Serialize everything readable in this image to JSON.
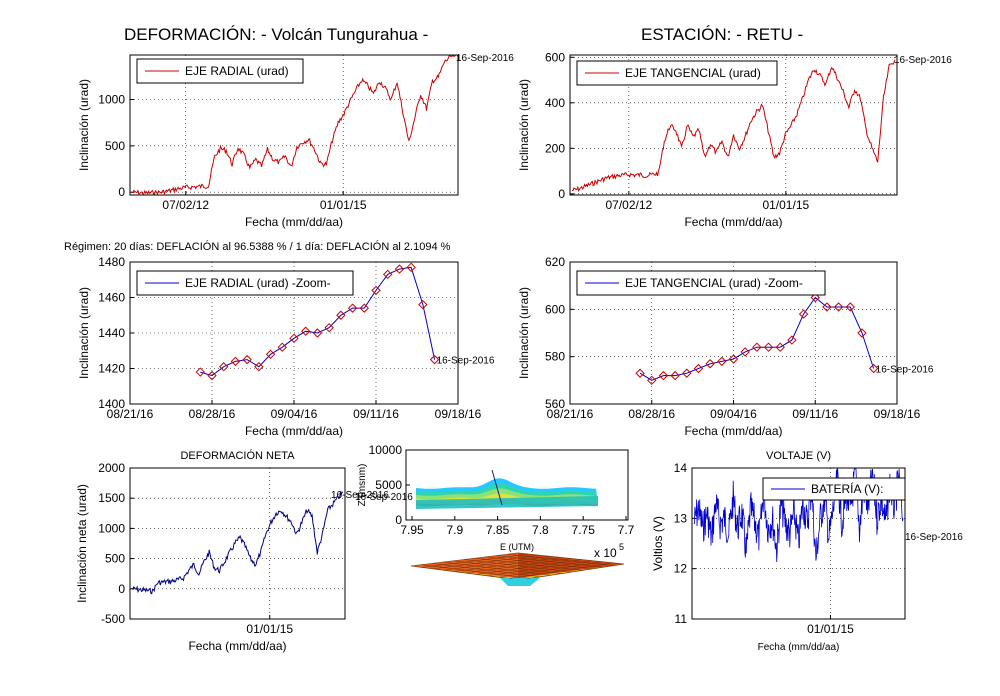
{
  "header": {
    "title_left": "DEFORMACIÓN: - Volcán Tungurahua -",
    "title_right": "ESTACIÓN: - RETU -",
    "regimen": "Régimen: 20 días: DEFLACIÓN al 96.5388 % / 1 día: DEFLACIÓN al 2.1094 %"
  },
  "colors": {
    "red": "#cc0000",
    "blue": "#0000cc",
    "navy": "#000080",
    "marker": "#cc0000"
  },
  "chart_data": [
    {
      "id": "radial",
      "type": "line",
      "title": "",
      "xlabel": "Fecha (mm/dd/aa)",
      "ylabel": "Inclinación (urad)",
      "ylim": [
        -30,
        1480
      ],
      "yticks": [
        0,
        500,
        1000
      ],
      "xticks": [
        "07/02/12",
        "01/01/15"
      ],
      "legend": "EJE RADIAL (urad)",
      "end_label": "16-Sep-2016",
      "series": [
        {
          "values": [
            0,
            -5,
            -10,
            -8,
            -5,
            0,
            10,
            25,
            40,
            50,
            55,
            60,
            65,
            70,
            380,
            470,
            450,
            300,
            480,
            400,
            260,
            350,
            280,
            460,
            350,
            320,
            390,
            270,
            490,
            540,
            570,
            460,
            310,
            300,
            560,
            750,
            850,
            980,
            1100,
            1210,
            1150,
            1060,
            1200,
            1120,
            1000,
            1190,
            860,
            540,
            800,
            1060,
            900,
            1200,
            1240,
            1400,
            1460,
            1480
          ]
        }
      ]
    },
    {
      "id": "tangencial",
      "type": "line",
      "title": "",
      "xlabel": "Fecha (mm/dd/aa)",
      "ylabel": "Inclinación (urad)",
      "ylim": [
        -5,
        610
      ],
      "yticks": [
        0,
        200,
        400,
        600
      ],
      "xticks": [
        "07/02/12",
        "01/01/15"
      ],
      "legend": "EJE TANGENCIAL (urad)",
      "end_label": "16-Sep-2016",
      "series": [
        {
          "values": [
            15,
            20,
            30,
            40,
            50,
            60,
            70,
            75,
            80,
            82,
            85,
            82,
            84,
            80,
            85,
            90,
            230,
            300,
            280,
            200,
            300,
            250,
            280,
            160,
            220,
            180,
            230,
            160,
            260,
            200,
            250,
            320,
            360,
            390,
            280,
            160,
            180,
            260,
            300,
            350,
            420,
            500,
            550,
            520,
            480,
            560,
            510,
            450,
            380,
            460,
            420,
            280,
            200,
            140,
            420,
            560,
            590
          ]
        }
      ]
    },
    {
      "id": "radial-zoom",
      "type": "line",
      "title": "",
      "xlabel": "Fecha (mm/dd/aa)",
      "ylabel": "Inclinación (urad)",
      "ylim": [
        1400,
        1480
      ],
      "yticks": [
        1400,
        1420,
        1440,
        1460,
        1480
      ],
      "xlim": [
        0,
        28
      ],
      "xticks": [
        {
          "x": 0,
          "label": "08/21/16"
        },
        {
          "x": 7,
          "label": "08/28/16"
        },
        {
          "x": 14,
          "label": "09/04/16"
        },
        {
          "x": 21,
          "label": "09/11/16"
        },
        {
          "x": 28,
          "label": "09/18/16"
        }
      ],
      "legend": "EJE RADIAL (urad) -Zoom-",
      "end_label": "16-Sep-2016",
      "x": [
        6,
        7,
        8,
        9,
        10,
        11,
        12,
        13,
        14,
        15,
        16,
        17,
        18,
        19,
        20,
        21,
        22,
        23,
        24,
        25,
        26
      ],
      "series": [
        {
          "values": [
            1418,
            1416,
            1421,
            1424,
            1425,
            1421,
            1428,
            1432,
            1437,
            1441,
            1440,
            1443,
            1450,
            1454,
            1454,
            1464,
            1473,
            1476,
            1477,
            1456,
            1425
          ]
        }
      ]
    },
    {
      "id": "tangencial-zoom",
      "type": "line",
      "title": "",
      "xlabel": "Fecha (mm/dd/aa)",
      "ylabel": "Inclinación (urad)",
      "ylim": [
        560,
        620
      ],
      "yticks": [
        560,
        580,
        600,
        620
      ],
      "xlim": [
        0,
        28
      ],
      "xticks": [
        {
          "x": 0,
          "label": "08/21/16"
        },
        {
          "x": 7,
          "label": "08/28/16"
        },
        {
          "x": 14,
          "label": "09/04/16"
        },
        {
          "x": 21,
          "label": "09/11/16"
        },
        {
          "x": 28,
          "label": "09/18/16"
        }
      ],
      "legend": "EJE TANGENCIAL (urad) -Zoom-",
      "end_label": "16-Sep-2016",
      "x": [
        6,
        7,
        8,
        9,
        10,
        11,
        12,
        13,
        14,
        15,
        16,
        17,
        18,
        19,
        20,
        21,
        22,
        23,
        24,
        25,
        26
      ],
      "series": [
        {
          "values": [
            573,
            570,
            572,
            572,
            573,
            575,
            577,
            578,
            579,
            582,
            584,
            584,
            584,
            587,
            598,
            605,
            601,
            601,
            601,
            590,
            575
          ]
        }
      ]
    },
    {
      "id": "neta",
      "type": "line",
      "title": "DEFORMACIÓN NETA",
      "xlabel": "Fecha (mm/dd/aa)",
      "ylabel": "Inclinación neta (urad)",
      "ylim": [
        -500,
        2000
      ],
      "yticks": [
        -500,
        0,
        500,
        1000,
        1500,
        2000
      ],
      "xticks": [
        "01/01/15"
      ],
      "end_label": "16-Sep-2016",
      "series": [
        {
          "values": [
            0,
            -10,
            -20,
            -30,
            -40,
            100,
            110,
            120,
            130,
            150,
            180,
            300,
            400,
            250,
            450,
            600,
            350,
            300,
            450,
            600,
            750,
            850,
            700,
            500,
            400,
            600,
            900,
            1100,
            1250,
            1300,
            1200,
            1100,
            900,
            1100,
            1300,
            1200,
            600,
            900,
            1300,
            1400,
            1500,
            1600
          ]
        }
      ]
    },
    {
      "id": "3d",
      "type": "surface",
      "zlabel": "Z (msnm)",
      "xlabel": "E (UTM)",
      "zlim": [
        0,
        10000
      ],
      "zticks": [
        0,
        5000,
        10000
      ],
      "xticks": [
        "7.95",
        "7.9",
        "7.85",
        "7.8",
        "7.75",
        "7.7"
      ],
      "multiplier": "x 10",
      "multiplier_exp": "5"
    },
    {
      "id": "voltaje",
      "type": "line",
      "title": "VOLTAJE (V)",
      "xlabel": "Fecha (mm/dd/aa)",
      "ylabel": "Voltios (V)",
      "ylim": [
        11,
        14
      ],
      "yticks": [
        11,
        12,
        13,
        14
      ],
      "xticks": [
        "01/01/15"
      ],
      "legend": "BATERÍA (V):",
      "end_label": "16-Sep-2016",
      "series": [
        {
          "values": [
            12.9,
            13.2,
            12.8,
            13.1,
            12.6,
            13.3,
            12.9,
            13.0,
            12.7,
            13.4,
            12.8,
            13.1,
            12.3,
            13.2,
            12.9,
            12.6,
            13.5,
            12.8,
            13.0,
            12.4,
            13.3,
            12.9,
            12.7,
            13.1,
            12.5,
            13.3,
            12.9,
            13.6,
            12.2,
            13.0,
            13.4,
            12.6,
            13.2,
            13.8,
            12.9,
            13.5,
            13.1,
            14.0,
            12.8,
            13.6,
            13.2,
            13.9,
            13.0,
            13.4,
            12.9,
            13.7,
            13.2,
            13.8,
            13.0
          ]
        }
      ]
    }
  ]
}
